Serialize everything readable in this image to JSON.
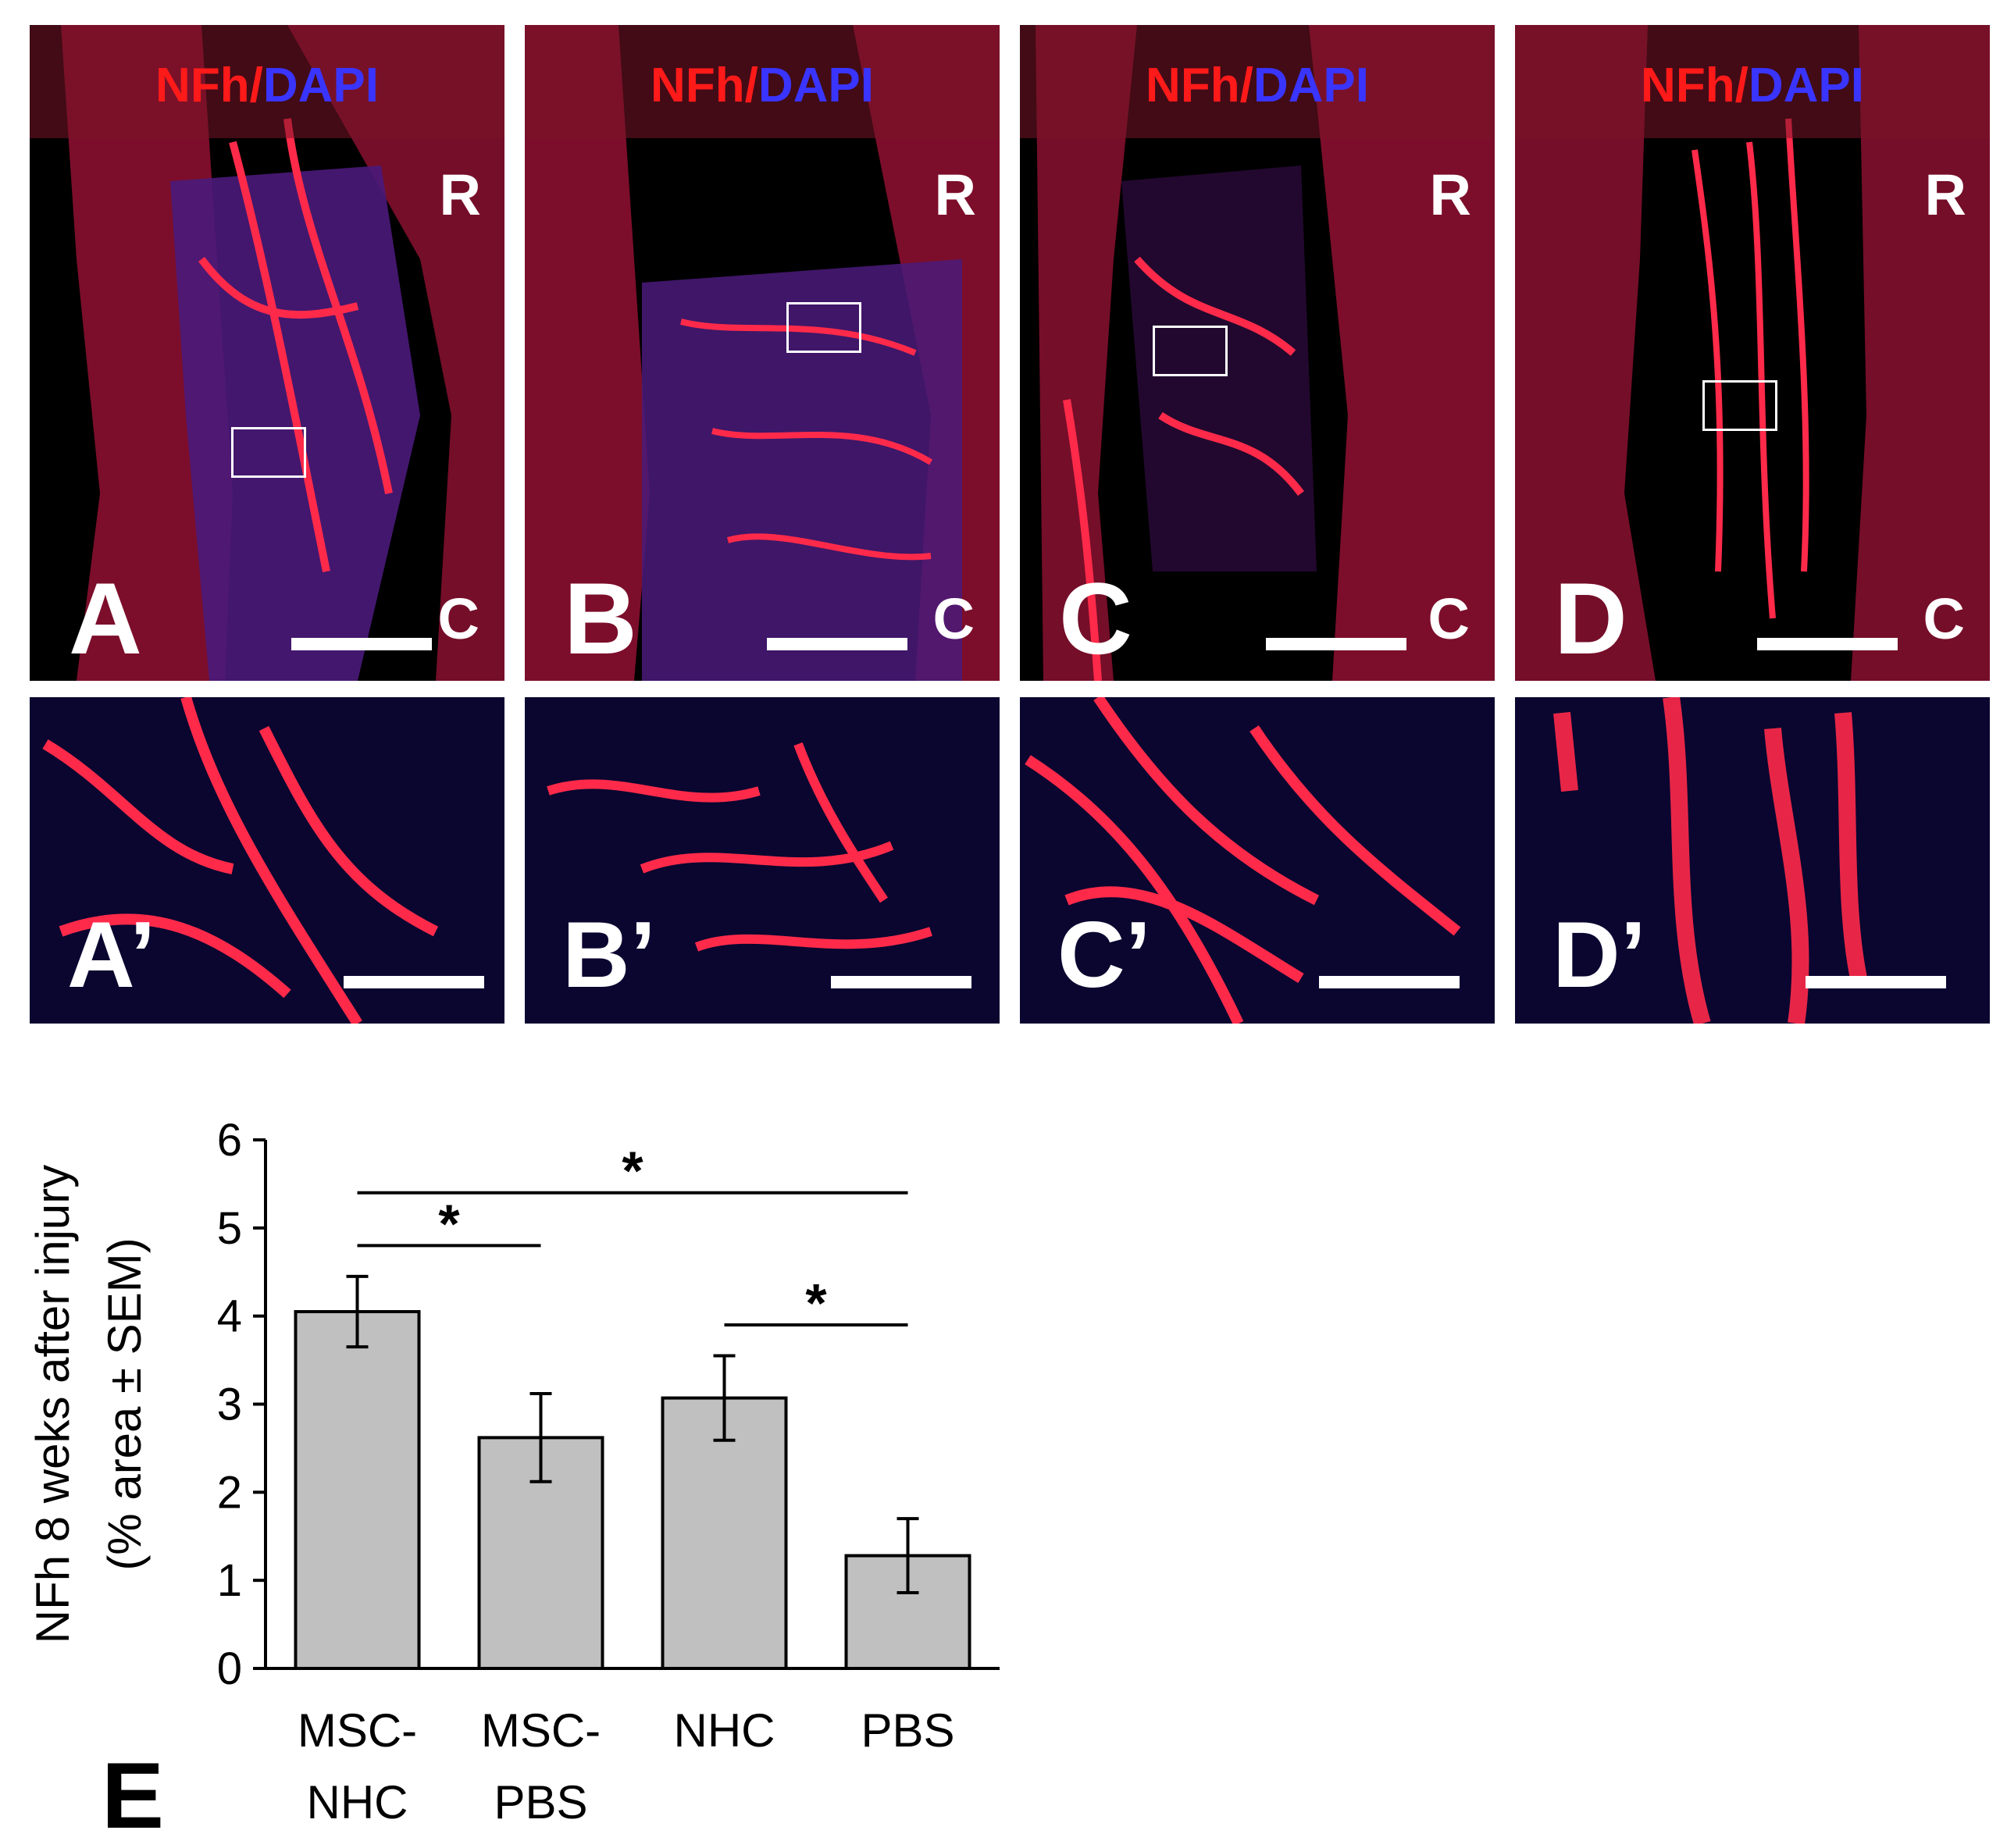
{
  "micrographs": {
    "stain_red": "NFh",
    "stain_sep": "/",
    "stain_blue": "DAPI",
    "rostral_label": "R",
    "caudal_label": "C",
    "overview_panels": [
      "A",
      "B",
      "C",
      "D"
    ],
    "zoom_panels": [
      "A’",
      "B’",
      "C’",
      "D’"
    ],
    "colors": {
      "nfh": "#ff1a1a",
      "dapi": "#3a34ff"
    }
  },
  "chart_label": "E",
  "chart_data": {
    "type": "bar",
    "categories": [
      [
        "MSC-",
        "NHC"
      ],
      [
        "MSC-",
        "PBS"
      ],
      [
        "NHC"
      ],
      [
        "PBS"
      ]
    ],
    "values": [
      4.05,
      2.62,
      3.07,
      1.28
    ],
    "errors": [
      0.4,
      0.5,
      0.48,
      0.42
    ],
    "ylabel_line1": "NFh 8 weks after injury",
    "ylabel_line2": "(% area ± SEM)",
    "ylim": [
      0,
      6
    ],
    "yticks": [
      "0",
      "1",
      "2",
      "3",
      "4",
      "5",
      "6"
    ],
    "bar_color": "#c0c0c0",
    "grid": false,
    "significance": [
      {
        "from": 0,
        "to": 3,
        "level": 5.4,
        "label": "*"
      },
      {
        "from": 0,
        "to": 1,
        "level": 4.8,
        "label": "*"
      },
      {
        "from": 2,
        "to": 3,
        "level": 3.9,
        "label": "*"
      }
    ]
  }
}
